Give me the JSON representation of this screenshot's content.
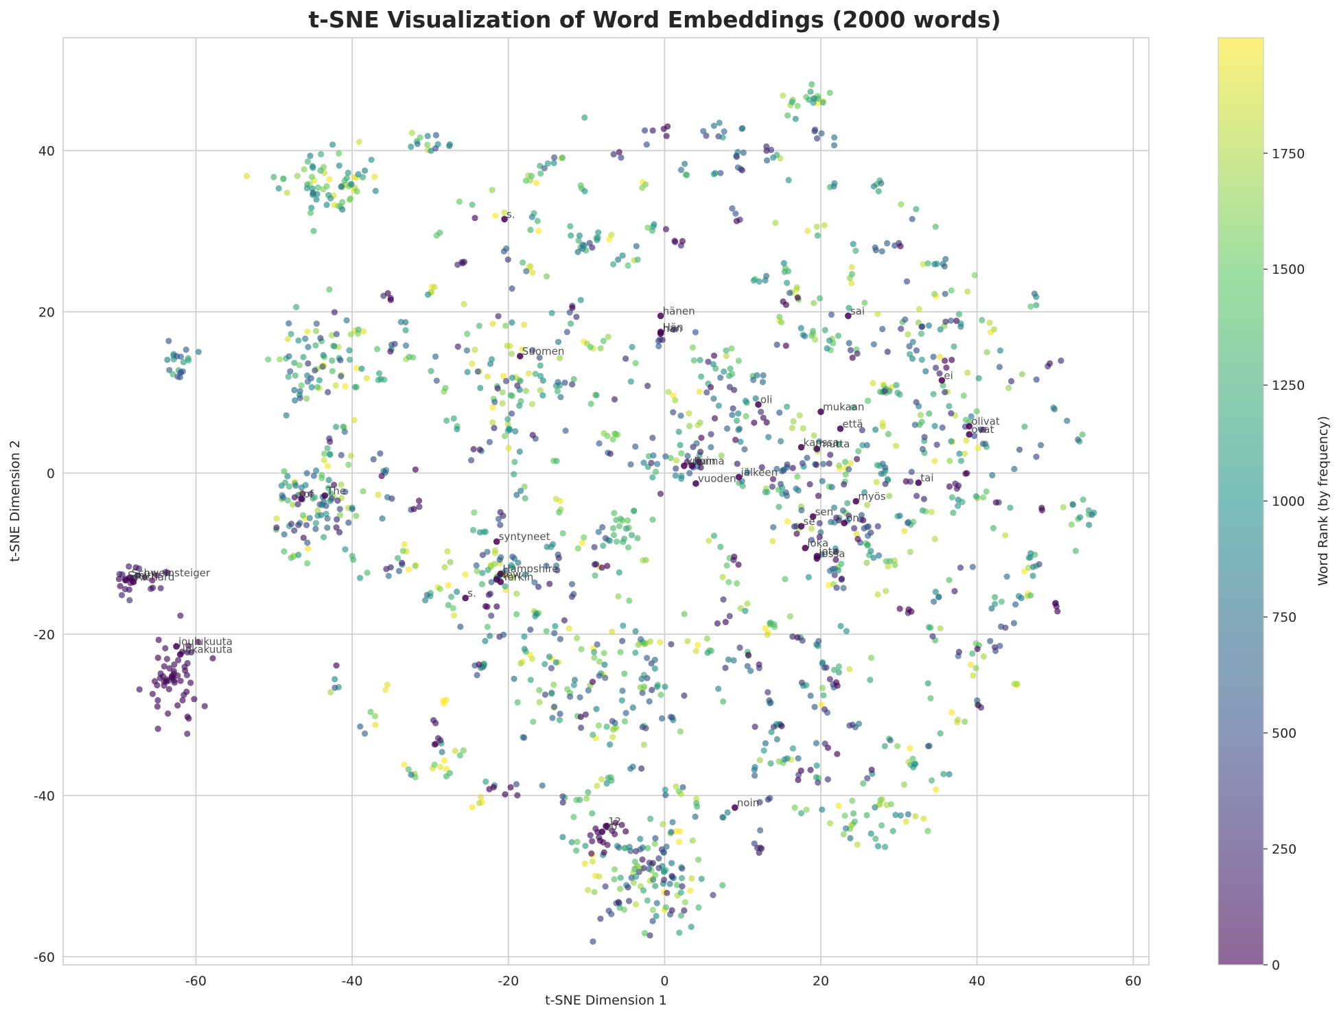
{
  "chart_data": {
    "type": "scatter",
    "title": "t-SNE Visualization of Word Embeddings (2000 words)",
    "xlabel": "t-SNE Dimension 1",
    "ylabel": "t-SNE Dimension 2",
    "xlim": [
      -77,
      62
    ],
    "ylim": [
      -61,
      54
    ],
    "x_ticks": [
      "-60",
      "-40",
      "-20",
      "0",
      "20",
      "40",
      "60"
    ],
    "y_ticks": [
      "-60",
      "-40",
      "-20",
      "0",
      "20",
      "40"
    ],
    "grid": true,
    "colorbar": {
      "label": "Word Rank (by frequency)",
      "colormap": "viridis",
      "range": [
        0,
        1999
      ],
      "ticks": [
        "0",
        "250",
        "500",
        "750",
        "1000",
        "1250",
        "1500",
        "1750"
      ]
    },
    "colormap_stops": [
      "#440154",
      "#3b528b",
      "#21918c",
      "#5ec962",
      "#fde725"
    ],
    "n_points": 2000,
    "clusters": [
      {
        "cx": -43,
        "cy": 36,
        "sx": 3,
        "sy": 2,
        "n": 70,
        "r0": 800,
        "r1": 1999
      },
      {
        "cx": -62,
        "cy": 14,
        "sx": 1.2,
        "sy": 1.3,
        "n": 20,
        "r0": 500,
        "r1": 1300
      },
      {
        "cx": -63,
        "cy": -25,
        "sx": 1.6,
        "sy": 2.6,
        "n": 55,
        "r0": 0,
        "r1": 140
      },
      {
        "cx": -67,
        "cy": -13,
        "sx": 2,
        "sy": 1.3,
        "n": 24,
        "r0": 0,
        "r1": 300
      },
      {
        "cx": -44,
        "cy": 14,
        "sx": 3,
        "sy": 3,
        "n": 60,
        "r0": 300,
        "r1": 1999
      },
      {
        "cx": -44,
        "cy": -4,
        "sx": 3,
        "sy": 3,
        "n": 70,
        "r0": 100,
        "r1": 1999
      },
      {
        "cx": -2,
        "cy": -50,
        "sx": 4,
        "sy": 3,
        "n": 110,
        "r0": 100,
        "r1": 1999
      },
      {
        "cx": -8,
        "cy": -45,
        "sx": 1,
        "sy": 1.3,
        "n": 15,
        "r0": 0,
        "r1": 120
      },
      {
        "cx": 18,
        "cy": 46,
        "sx": 2,
        "sy": 1,
        "n": 20,
        "r0": 900,
        "r1": 1999
      },
      {
        "cx": -30,
        "cy": 41,
        "sx": 1.5,
        "sy": 0.8,
        "n": 14,
        "r0": 500,
        "r1": 1900
      },
      {
        "cx": -5,
        "cy": -7,
        "sx": 1.2,
        "sy": 1.2,
        "n": 20,
        "r0": 1100,
        "r1": 1500
      },
      {
        "cx": 5,
        "cy": 5,
        "sx": 5,
        "sy": 5,
        "n": 60,
        "r0": 0,
        "r1": 1200
      },
      {
        "cx": 22,
        "cy": -4,
        "sx": 5,
        "sy": 5,
        "n": 80,
        "r0": 0,
        "r1": 1999
      },
      {
        "cx": 27,
        "cy": -43,
        "sx": 3,
        "sy": 2,
        "n": 30,
        "r0": 800,
        "r1": 1999
      },
      {
        "cx": 53,
        "cy": -5,
        "sx": 1.3,
        "sy": 1,
        "n": 12,
        "r0": 500,
        "r1": 1700
      },
      {
        "cx": -22,
        "cy": -13,
        "sx": 2,
        "sy": 2,
        "n": 35,
        "r0": 0,
        "r1": 1999
      },
      {
        "cx": -20,
        "cy": 12,
        "sx": 5,
        "sy": 5,
        "n": 70,
        "r0": 200,
        "r1": 1999
      },
      {
        "cx": -10,
        "cy": -25,
        "sx": 6,
        "sy": 5,
        "n": 80,
        "r0": 200,
        "r1": 1999
      },
      {
        "cx": 35,
        "cy": 10,
        "sx": 5,
        "sy": 8,
        "n": 90,
        "r0": 200,
        "r1": 1999
      }
    ],
    "annotations": [
      {
        "label": "s.",
        "x": -20.5,
        "y": 31.5
      },
      {
        "label": "hänen",
        "x": -0.5,
        "y": 19.5
      },
      {
        "label": "Hän",
        "x": -0.5,
        "y": 17.5
      },
      {
        "label": "han",
        "x": -0.5,
        "y": 17.3
      },
      {
        "label": "sai",
        "x": 23.5,
        "y": 19.5
      },
      {
        "label": "Suomen",
        "x": -18.5,
        "y": 14.5
      },
      {
        "label": "ei",
        "x": 35.5,
        "y": 11.5
      },
      {
        "label": "oli",
        "x": 12,
        "y": 8.5
      },
      {
        "label": "mukaan",
        "x": 20,
        "y": 7.6
      },
      {
        "label": "että",
        "x": 22.5,
        "y": 5.5
      },
      {
        "label": "olivat",
        "x": 39,
        "y": 5.8
      },
      {
        "label": "ovat",
        "x": 39,
        "y": 4.8
      },
      {
        "label": "kanssa",
        "x": 17.5,
        "y": 3.2
      },
      {
        "label": "mutta",
        "x": 19.5,
        "y": 3
      },
      {
        "label": "vuonna",
        "x": 2.5,
        "y": 0.9
      },
      {
        "label": "kuin",
        "x": 3.5,
        "y": 0.9
      },
      {
        "label": "jälkeen",
        "x": 9.5,
        "y": -0.5
      },
      {
        "label": "vuoden",
        "x": 4,
        "y": -1.3
      },
      {
        "label": "tai",
        "x": 32.5,
        "y": -1.2
      },
      {
        "label": "The",
        "x": -43.5,
        "y": -2.8
      },
      {
        "label": "of",
        "x": -46.5,
        "y": -3.2
      },
      {
        "label": "myös",
        "x": 24.5,
        "y": -3.5
      },
      {
        "label": "sen",
        "x": 19,
        "y": -5.4
      },
      {
        "label": "on",
        "x": 23,
        "y": -6.2
      },
      {
        "label": "se",
        "x": 17.5,
        "y": -6.6
      },
      {
        "label": "syntyneet",
        "x": -21.5,
        "y": -8.5
      },
      {
        "label": "joka",
        "x": 18,
        "y": -9.3
      },
      {
        "label": "jota",
        "x": 19.5,
        "y": -10.3
      },
      {
        "label": "jossa",
        "x": 19.5,
        "y": -10.6
      },
      {
        "label": "Schweinsteiger",
        "x": -68.5,
        "y": -13
      },
      {
        "label": "Smith",
        "x": -69,
        "y": -13.3
      },
      {
        "label": "Richard",
        "x": -68,
        "y": -13.5
      },
      {
        "label": "Hampshire",
        "x": -21,
        "y": -12.5
      },
      {
        "label": "New",
        "x": -21.5,
        "y": -13.2
      },
      {
        "label": "Yorkin",
        "x": -21,
        "y": -13.5
      },
      {
        "label": "s.",
        "x": -25.5,
        "y": -15.5
      },
      {
        "label": "joulukuuta",
        "x": -62.5,
        "y": -21.5
      },
      {
        "label": "lokakuuta",
        "x": -62,
        "y": -22.5
      },
      {
        "label": "noin",
        "x": 9,
        "y": -41.5
      },
      {
        "label": "12",
        "x": -7.5,
        "y": -43.8
      },
      {
        "label": "10",
        "x": -8,
        "y": -44.5
      }
    ]
  }
}
